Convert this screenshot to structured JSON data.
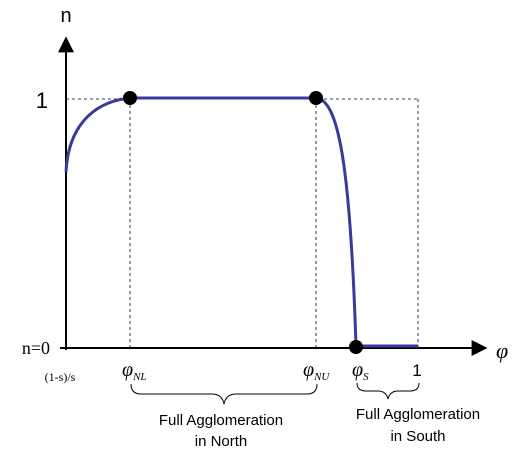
{
  "axes": {
    "y_label": "n",
    "x_label": "φ",
    "y_tick_one": "1",
    "y_tick_zero": "n=0",
    "x_origin_label": "(1-s)/s"
  },
  "x_ticks": {
    "phi_nl": {
      "base": "φ",
      "sub": "NL"
    },
    "phi_nu": {
      "base": "φ",
      "sub": "NU"
    },
    "phi_s": {
      "base": "φ",
      "sub": "S"
    },
    "one": "1"
  },
  "regions": {
    "north": {
      "line1": "Full Agglomeration",
      "line2": "in North"
    },
    "south": {
      "line1": "Full Agglomeration",
      "line2": "in South"
    }
  },
  "colors": {
    "curve": "#3a3a9c",
    "axis": "#000000",
    "guide": "#000000",
    "point": "#000000"
  }
}
